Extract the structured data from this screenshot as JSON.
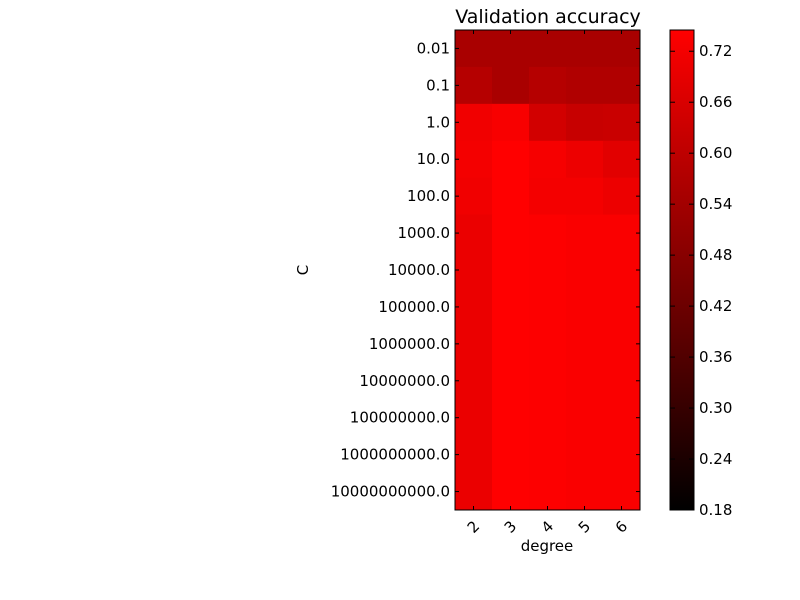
{
  "chart_data": {
    "type": "heatmap",
    "title": "Validation accuracy",
    "xlabel": "degree",
    "ylabel": "C",
    "x_categories": [
      "2",
      "3",
      "4",
      "5",
      "6"
    ],
    "y_categories": [
      "0.01",
      "0.1",
      "1.0",
      "10.0",
      "100.0",
      "1000.0",
      "10000.0",
      "100000.0",
      "1000000.0",
      "10000000.0",
      "100000000.0",
      "1000000000.0",
      "10000000000.0"
    ],
    "values": [
      [
        0.555,
        0.555,
        0.555,
        0.555,
        0.555
      ],
      [
        0.58,
        0.555,
        0.58,
        0.57,
        0.57
      ],
      [
        0.715,
        0.73,
        0.645,
        0.62,
        0.625
      ],
      [
        0.72,
        0.745,
        0.725,
        0.705,
        0.68
      ],
      [
        0.715,
        0.745,
        0.72,
        0.72,
        0.705
      ],
      [
        0.7,
        0.745,
        0.74,
        0.735,
        0.735
      ],
      [
        0.7,
        0.745,
        0.74,
        0.735,
        0.735
      ],
      [
        0.7,
        0.745,
        0.74,
        0.735,
        0.735
      ],
      [
        0.7,
        0.745,
        0.74,
        0.735,
        0.735
      ],
      [
        0.7,
        0.745,
        0.74,
        0.735,
        0.735
      ],
      [
        0.7,
        0.745,
        0.74,
        0.735,
        0.735
      ],
      [
        0.7,
        0.745,
        0.74,
        0.735,
        0.735
      ],
      [
        0.7,
        0.745,
        0.74,
        0.735,
        0.735
      ]
    ],
    "colormap": "black-to-red",
    "colormap_colors": [
      "#000000",
      "#ff0000"
    ],
    "vmin": 0.18,
    "vmax": 0.745,
    "colorbar_ticks": [
      "0.18",
      "0.24",
      "0.30",
      "0.36",
      "0.42",
      "0.48",
      "0.54",
      "0.60",
      "0.66",
      "0.72"
    ],
    "colorbar_placement": "right"
  }
}
